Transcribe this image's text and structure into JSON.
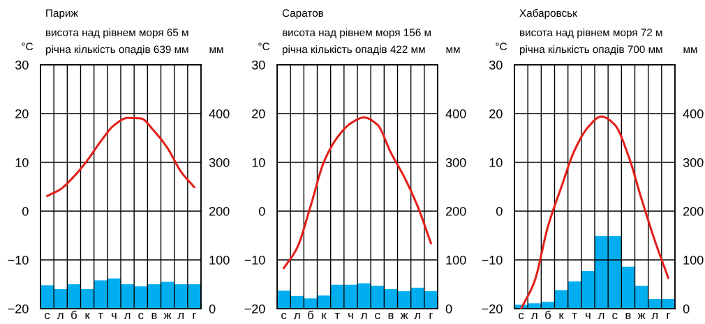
{
  "chart_data": [
    {
      "type": "bar",
      "title": "Париж",
      "subtitle": "висота над рівнем моря 65 м\nрічна кількість опадів 639 мм",
      "ylabel": "°C",
      "y2label": "мм",
      "categories": [
        "с",
        "л",
        "б",
        "к",
        "т",
        "ч",
        "л",
        "с",
        "в",
        "ж",
        "л",
        "г"
      ],
      "series": [
        {
          "axis": "y2",
          "color": "#00aeef",
          "values": [
            48,
            40,
            50,
            40,
            58,
            62,
            50,
            46,
            50,
            55,
            50,
            50
          ]
        },
        {
          "type": "line",
          "color": "#e3201b",
          "values": [
            3.1,
            4.5,
            7.1,
            10.4,
            14.3,
            17.6,
            19.1,
            19.0,
            16.4,
            12.9,
            8.1,
            4.9
          ]
        }
      ],
      "ylim": [
        -20,
        30
      ],
      "yticks": [
        -20,
        -10,
        0,
        10,
        20,
        30
      ],
      "y2lim": [
        0,
        500
      ],
      "y2ticks": [
        0,
        100,
        200,
        300,
        400
      ],
      "grid": true,
      "legend": false
    },
    {
      "type": "bar",
      "title": "Саратов",
      "subtitle": "висота над рівнем моря 156 м\nрічна кількість опадів 422 мм",
      "ylabel": "°C",
      "y2label": "мм",
      "categories": [
        "с",
        "л",
        "б",
        "к",
        "т",
        "ч",
        "л",
        "с",
        "в",
        "ж",
        "л",
        "г"
      ],
      "series": [
        {
          "axis": "y2",
          "color": "#00aeef",
          "values": [
            37,
            26,
            21,
            27,
            49,
            49,
            52,
            47,
            40,
            36,
            43,
            36
          ]
        },
        {
          "type": "line",
          "color": "#e3201b",
          "values": [
            -11.7,
            -7.5,
            1.0,
            10.1,
            15.1,
            18.0,
            19.2,
            17.7,
            12.0,
            7.0,
            1.0,
            -6.6
          ]
        }
      ],
      "ylim": [
        -20,
        30
      ],
      "yticks": [
        -20,
        -10,
        0,
        10,
        20,
        30
      ],
      "y2lim": [
        0,
        500
      ],
      "y2ticks": [
        0,
        100,
        200,
        300,
        400
      ],
      "grid": true,
      "legend": false
    },
    {
      "type": "bar",
      "title": "Хабаровськ",
      "subtitle": "висота над рівнем моря 72 м\nрічна кількість опадів 700 мм",
      "ylabel": "°C",
      "y2label": "мм",
      "categories": [
        "с",
        "л",
        "б",
        "к",
        "т",
        "ч",
        "л",
        "с",
        "в",
        "ж",
        "л",
        "г"
      ],
      "series": [
        {
          "axis": "y2",
          "color": "#00aeef",
          "values": [
            8,
            11,
            14,
            38,
            56,
            77,
            149,
            149,
            86,
            47,
            20,
            20
          ]
        },
        {
          "type": "line",
          "color": "#e3201b",
          "values": [
            -20.0,
            -14.4,
            -3.2,
            4.9,
            12.5,
            17.2,
            19.4,
            17.7,
            11.5,
            2.5,
            -6.1,
            -13.7
          ]
        }
      ],
      "ylim": [
        -20,
        30
      ],
      "yticks": [
        -20,
        -10,
        0,
        10,
        20,
        30
      ],
      "y2lim": [
        0,
        500
      ],
      "y2ticks": [
        0,
        100,
        200,
        300,
        400
      ],
      "grid": true,
      "legend": false
    }
  ]
}
